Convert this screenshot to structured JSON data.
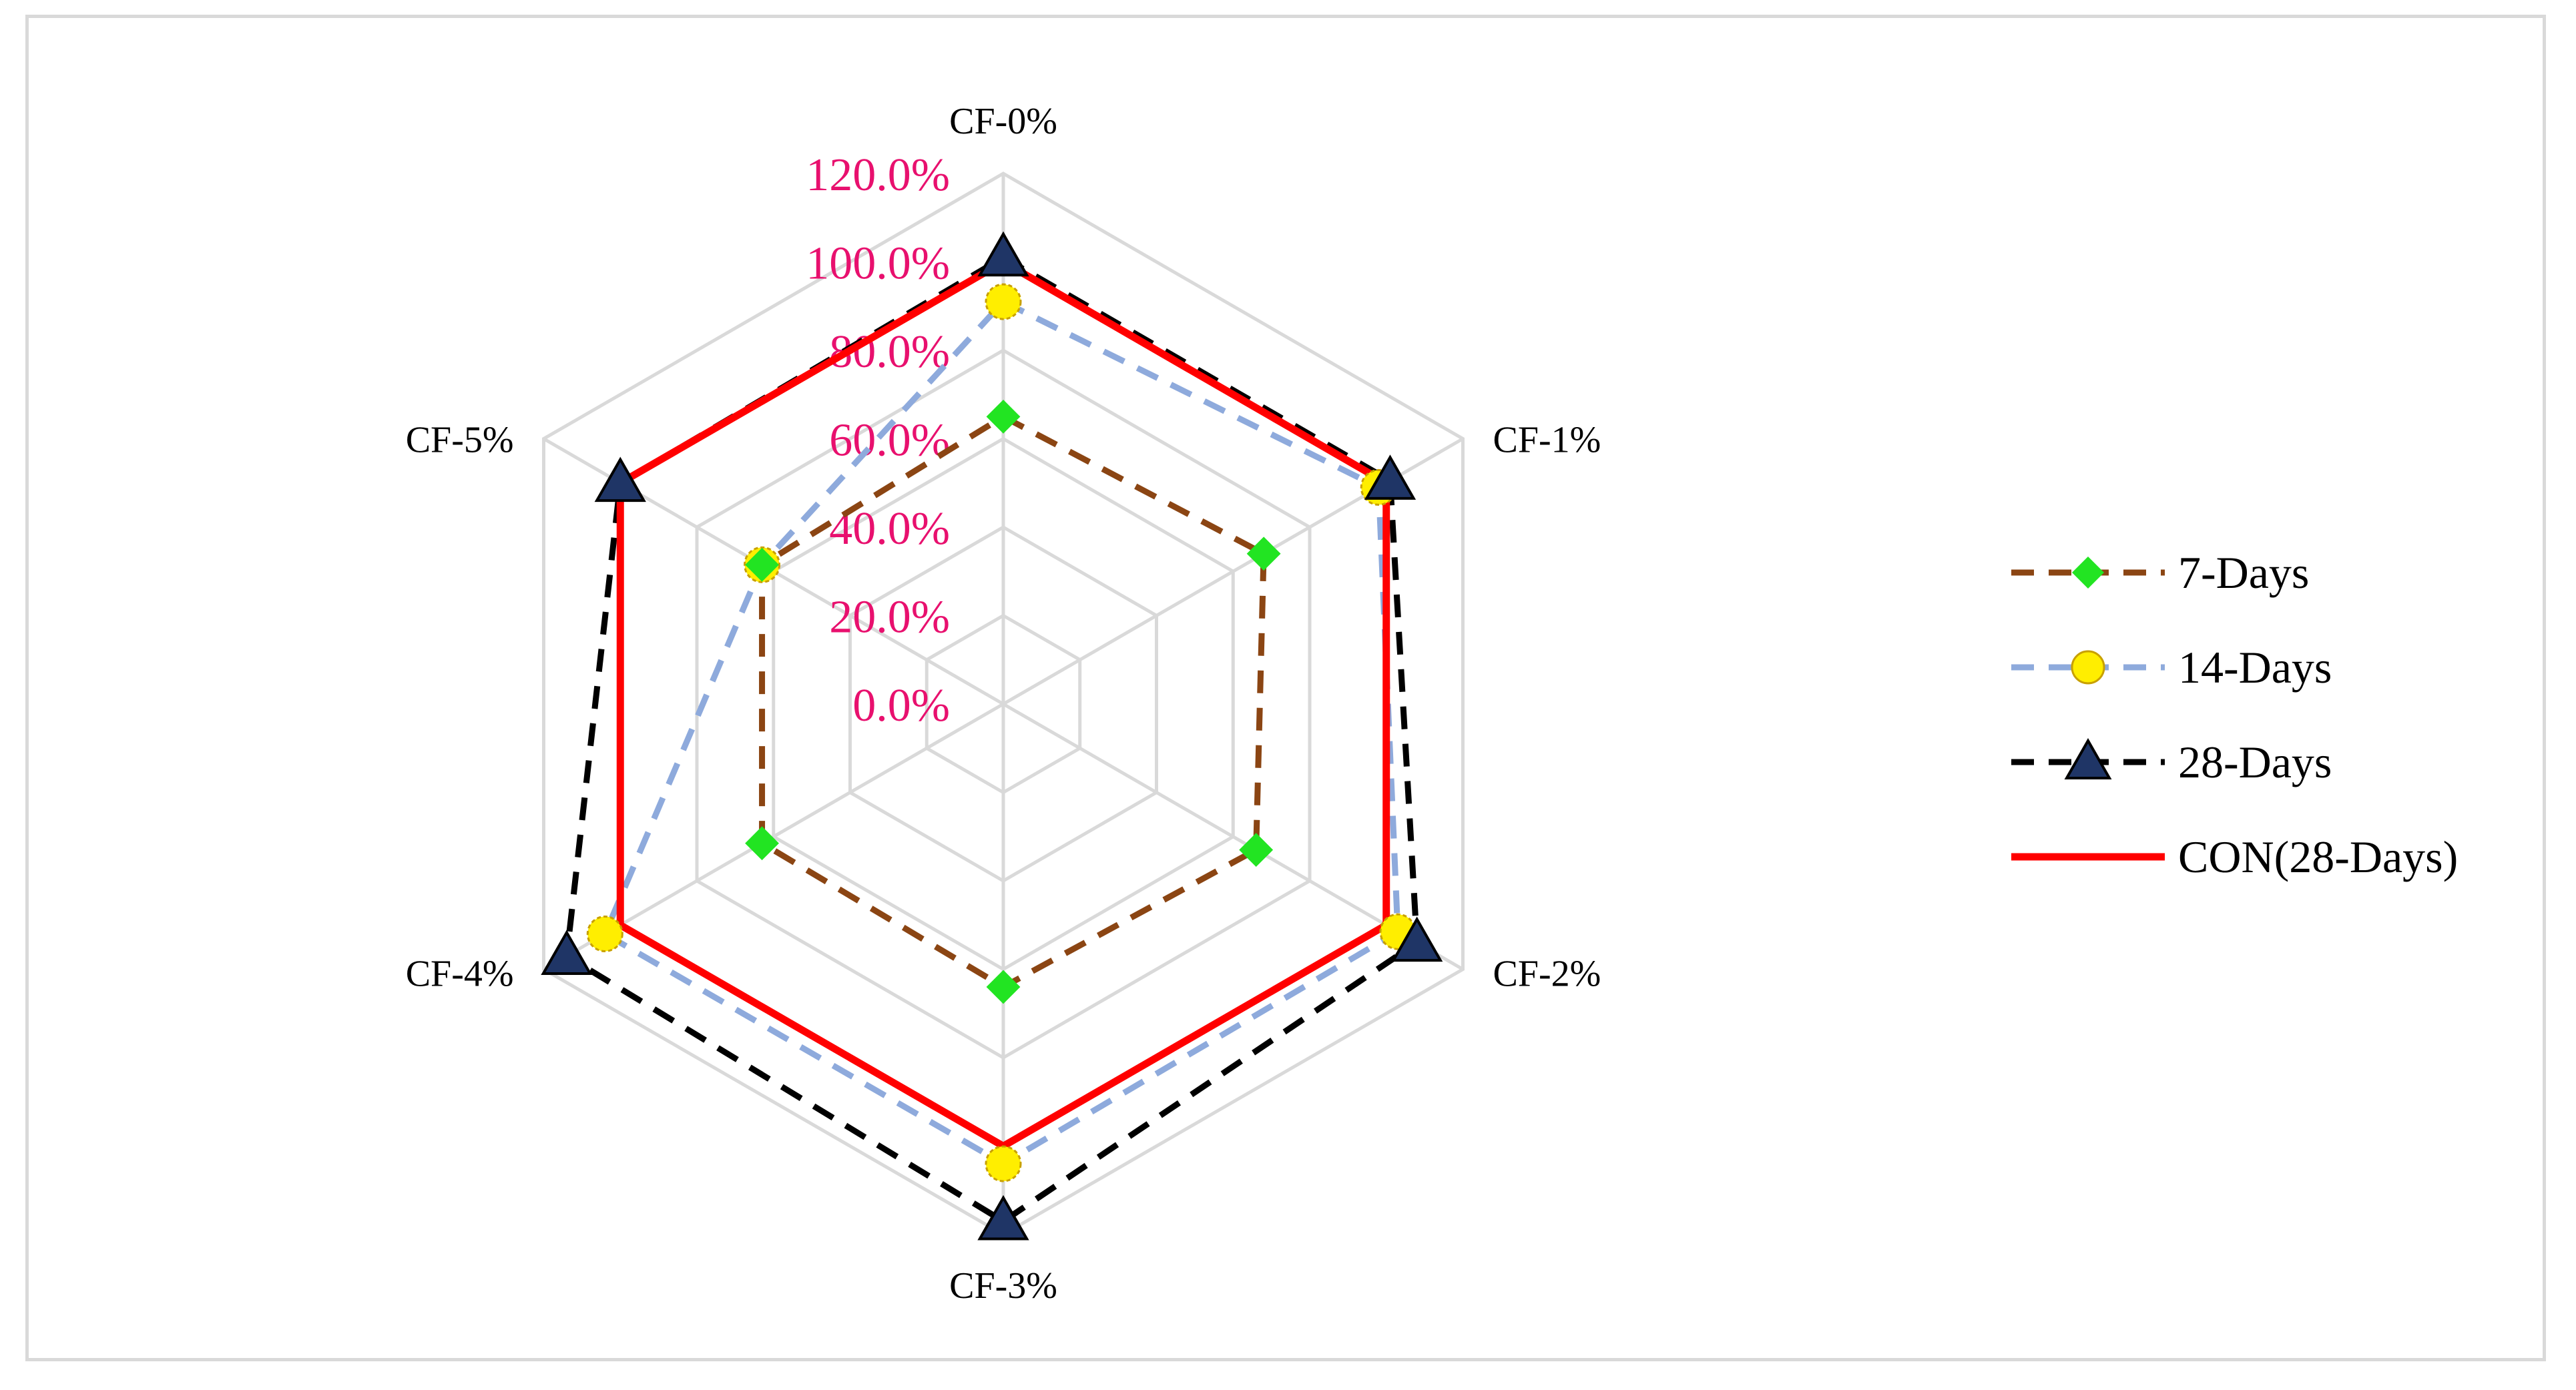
{
  "chart_data": {
    "type": "radar",
    "categories": [
      "CF-0%",
      "CF-1%",
      "CF-2%",
      "CF-3%",
      "CF-4%",
      "CF-5%"
    ],
    "r_ticks": [
      "0.0%",
      "20.0%",
      "40.0%",
      "60.0%",
      "80.0%",
      "100.0%",
      "120.0%"
    ],
    "rlim": [
      0,
      120
    ],
    "grid": true,
    "legend_position": "right",
    "series": [
      {
        "name": "7-Days",
        "values": [
          65,
          68,
          66,
          64,
          63,
          63
        ],
        "color": "#8b4513",
        "marker": "diamond",
        "marker_color": "#22e422",
        "line_style": "dashed"
      },
      {
        "name": "14-Days",
        "values": [
          91,
          98,
          103,
          104,
          104,
          63
        ],
        "color": "#8eaadc",
        "marker": "circle",
        "marker_color": "#ffee00",
        "line_style": "dashed"
      },
      {
        "name": "28-Days",
        "values": [
          101,
          101,
          108,
          117,
          114,
          100
        ],
        "color": "#000000",
        "marker": "triangle",
        "marker_color": "#1f3566",
        "line_style": "dashed"
      },
      {
        "name": "CON(28-Days)",
        "values": [
          100,
          100,
          100,
          100,
          100,
          100
        ],
        "color": "#ff0000",
        "marker": "none",
        "line_style": "solid"
      }
    ]
  }
}
